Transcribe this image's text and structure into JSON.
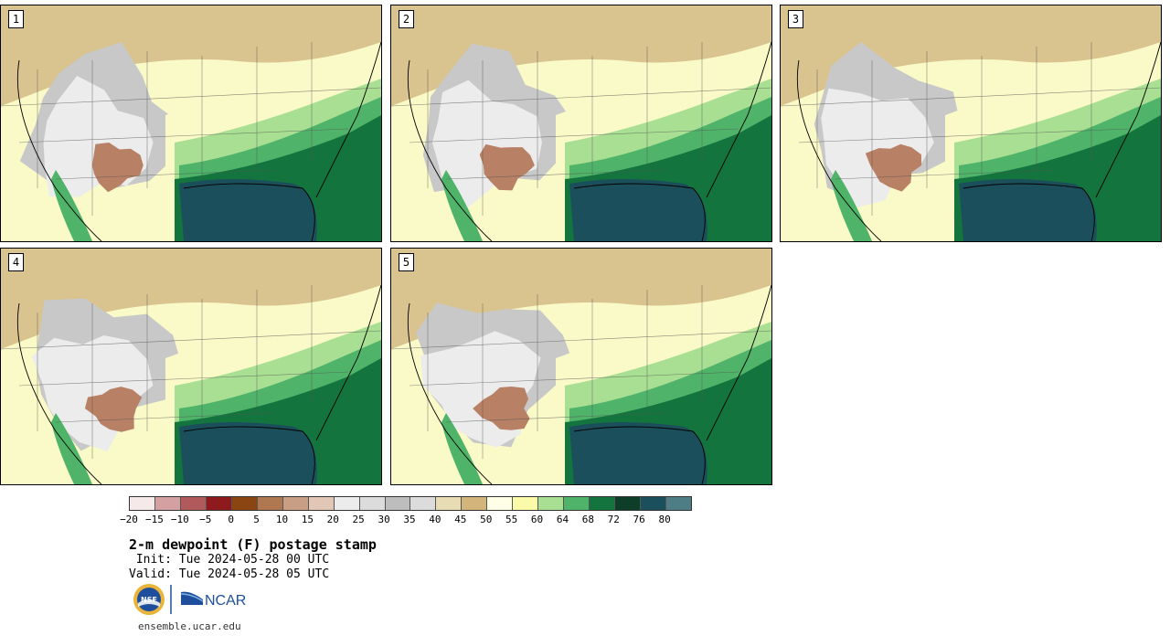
{
  "panels": [
    {
      "label": "1"
    },
    {
      "label": "2"
    },
    {
      "label": "3"
    },
    {
      "label": "4"
    },
    {
      "label": "5"
    }
  ],
  "colorbar": {
    "colors": [
      "#f5e9e9",
      "#d4a0a1",
      "#b05a5b",
      "#8e1a1d",
      "#8b4513",
      "#b07850",
      "#c89f85",
      "#e2c6b6",
      "#ececec",
      "#dcdcdc",
      "#bdbdbd",
      "#dcdcdc",
      "#e7dcb3",
      "#d3b47a",
      "#ffffe8",
      "#fafaa8",
      "#a9df92",
      "#4fb36a",
      "#13753d",
      "#0e3d29",
      "#1c4f5c",
      "#4f7d85"
    ],
    "ticks": [
      "−20",
      "−15",
      "−10",
      "−5",
      "0",
      "5",
      "10",
      "15",
      "20",
      "25",
      "30",
      "35",
      "40",
      "45",
      "50",
      "55",
      "60",
      "64",
      "68",
      "72",
      "76",
      "80"
    ]
  },
  "title": "2-m dewpoint (F) postage stamp",
  "init_text": " Init: Tue 2024-05-28 00 UTC",
  "valid_text": "Valid: Tue 2024-05-28 05 UTC",
  "logos": {
    "nsf": "NSF",
    "ncar": "NCAR"
  },
  "url": "ensemble.ucar.edu",
  "map_colors": {
    "dry_tan": "#d9c48f",
    "gray": "#c8c8c8",
    "light_gray": "#ececec",
    "brown": "#b88064",
    "pale_yellow": "#fafac8",
    "light_green": "#a9df92",
    "green": "#4fb36a",
    "dark_green": "#13753d",
    "gulf_teal": "#1c4f5c"
  }
}
